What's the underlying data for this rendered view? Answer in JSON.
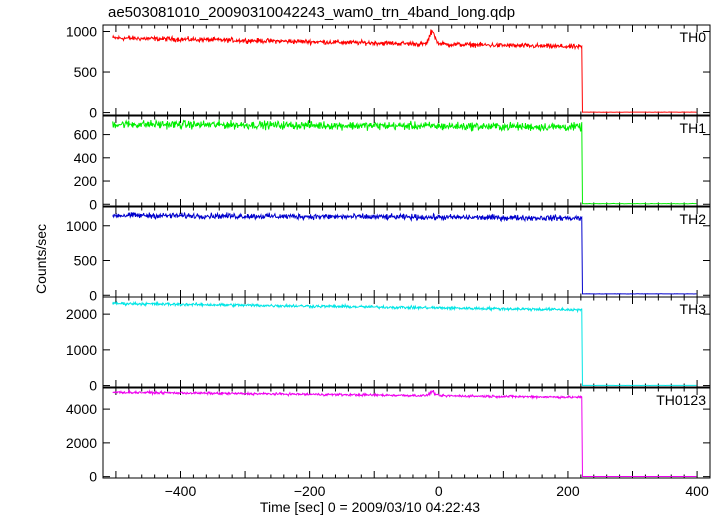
{
  "title": "ae503081010_20090310042243_wam0_trn_4band_long.qdp",
  "chart_data": {
    "type": "line",
    "title": "ae503081010_20090310042243_wam0_trn_4band_long.qdp",
    "xlabel": "Time [sec] 0 = 2009/03/10 04:22:43",
    "ylabel": "Counts/sec",
    "xlim": [
      -520,
      420
    ],
    "x_ticks": [
      -400,
      -200,
      0,
      200,
      400
    ],
    "x_tick_labels": [
      "−400",
      "−200",
      "0",
      "200",
      "400"
    ],
    "shared_x": true,
    "grid": false,
    "data_end_x": 222,
    "x_start": -505,
    "x_end": 400,
    "panels": [
      {
        "name": "TH0",
        "color": "#ff0000",
        "ylim": [
          -30,
          1080
        ],
        "y_ticks": [
          0,
          500,
          1000
        ],
        "y_tick_labels": [
          "0",
          "500",
          "1000"
        ],
        "level_start": 920,
        "level_end": 810,
        "noise": 25,
        "level_after": 5,
        "features": [
          {
            "x": -10,
            "peak": 1050
          }
        ]
      },
      {
        "name": "TH1",
        "color": "#00ee00",
        "ylim": [
          -15,
          760
        ],
        "y_ticks": [
          0,
          200,
          400,
          600
        ],
        "y_tick_labels": [
          "0",
          "200",
          "400",
          "600"
        ],
        "level_start": 690,
        "level_end": 665,
        "noise": 30,
        "level_after": 5,
        "features": []
      },
      {
        "name": "TH2",
        "color": "#0000cc",
        "ylim": [
          -25,
          1270
        ],
        "y_ticks": [
          0,
          500,
          1000
        ],
        "y_tick_labels": [
          "0",
          "500",
          "1000"
        ],
        "level_start": 1150,
        "level_end": 1110,
        "noise": 35,
        "level_after": 20,
        "features": []
      },
      {
        "name": "TH3",
        "color": "#00e5e5",
        "ylim": [
          -40,
          2480
        ],
        "y_ticks": [
          0,
          1000,
          2000
        ],
        "y_tick_labels": [
          "0",
          "1000",
          "2000"
        ],
        "level_start": 2300,
        "level_end": 2120,
        "noise": 35,
        "level_after": 5,
        "features": []
      },
      {
        "name": "TH0123",
        "color": "#ee00ee",
        "ylim": [
          -80,
          5250
        ],
        "y_ticks": [
          0,
          2000,
          4000
        ],
        "y_tick_labels": [
          "0",
          "2000",
          "4000"
        ],
        "level_start": 5000,
        "level_end": 4700,
        "noise": 60,
        "level_after": 10,
        "features": [
          {
            "x": -10,
            "peak": 5080
          }
        ]
      }
    ]
  }
}
